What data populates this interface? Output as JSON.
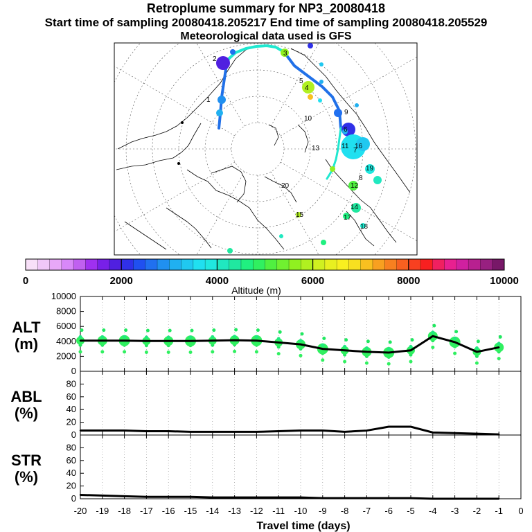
{
  "header": {
    "title": "Retroplume summary for NP3_20080418",
    "sampling": "Start time of sampling 20080418.205217     End time of sampling 20080418.205529",
    "met": "Meteorological data used is GFS"
  },
  "colorbar": {
    "ticks": [
      "0",
      "2000",
      "4000",
      "6000",
      "8000",
      "10000"
    ],
    "label": "Altitude (m)",
    "colors": [
      "#f8e0f8",
      "#f0c8f8",
      "#e8a8f8",
      "#d888f8",
      "#c060f0",
      "#a030f0",
      "#7820e8",
      "#5020e0",
      "#3030e8",
      "#2050f0",
      "#2070f0",
      "#2090f0",
      "#20b0f0",
      "#20c8f0",
      "#20e0f0",
      "#20e8e0",
      "#20e8c0",
      "#20e8a0",
      "#20f080",
      "#30f060",
      "#50f040",
      "#70f030",
      "#90f020",
      "#b0f020",
      "#d0f020",
      "#e8f020",
      "#f8f020",
      "#f8e020",
      "#f8c020",
      "#f8a020",
      "#f88020",
      "#f86020",
      "#f84020",
      "#f82020",
      "#f02060",
      "#e82090",
      "#d020a0",
      "#b82090",
      "#982080",
      "#781868"
    ]
  },
  "map": {
    "numbers": [
      "1",
      "2",
      "3",
      "4",
      "5",
      "6",
      "7",
      "8",
      "9",
      "10",
      "11",
      "12",
      "13",
      "14",
      "15",
      "16",
      "17",
      "18",
      "19",
      "20"
    ],
    "colors": {
      "track_blue": "#2070e8",
      "track_cyan": "#20e8d0",
      "coast": "#000000"
    }
  },
  "chart_data": [
    {
      "type": "line",
      "name": "ALT",
      "ylabel_line1": "ALT",
      "ylabel_line2": "(m)",
      "ylim": [
        0,
        10000
      ],
      "yticks": [
        0,
        2000,
        4000,
        6000,
        8000,
        10000
      ],
      "x": [
        -20,
        -19,
        -18,
        -17,
        -16,
        -15,
        -14,
        -13,
        -12,
        -11,
        -10,
        -9,
        -8,
        -7,
        -6,
        -5,
        -4,
        -3,
        -2,
        -1
      ],
      "values": [
        4100,
        4100,
        4100,
        4050,
        4050,
        4050,
        4100,
        4150,
        4100,
        3850,
        3600,
        3000,
        2800,
        2600,
        2500,
        2800,
        4700,
        3900,
        2600,
        3200
      ],
      "color": "#000000"
    },
    {
      "type": "line",
      "name": "ABL",
      "ylabel_line1": "ABL",
      "ylabel_line2": "(%)",
      "ylim": [
        0,
        100
      ],
      "yticks": [
        0,
        20,
        40,
        60,
        80
      ],
      "x": [
        -20,
        -19,
        -18,
        -17,
        -16,
        -15,
        -14,
        -13,
        -12,
        -11,
        -10,
        -9,
        -8,
        -7,
        -6,
        -5,
        -4,
        -3,
        -2,
        -1
      ],
      "values": [
        7,
        7,
        7,
        6,
        6,
        5,
        5,
        5,
        5,
        6,
        7,
        7,
        5,
        7,
        13,
        13,
        4,
        3,
        2,
        1
      ],
      "color": "#000000"
    },
    {
      "type": "line",
      "name": "STR",
      "ylabel_line1": "STR",
      "ylabel_line2": "(%)",
      "ylim": [
        0,
        100
      ],
      "yticks": [
        0,
        20,
        40,
        60,
        80
      ],
      "x": [
        -20,
        -19,
        -18,
        -17,
        -16,
        -15,
        -14,
        -13,
        -12,
        -11,
        -10,
        -9,
        -8,
        -7,
        -6,
        -5,
        -4,
        -3,
        -2,
        -1
      ],
      "values": [
        6,
        5,
        4,
        3,
        3,
        3,
        2,
        2,
        2,
        2,
        2,
        1,
        1,
        1,
        1,
        1,
        0,
        0,
        0,
        0
      ],
      "color": "#000000",
      "xlabel": "Travel time (days)",
      "xticks": [
        -20,
        -19,
        -18,
        -17,
        -16,
        -15,
        -14,
        -13,
        -12,
        -11,
        -10,
        -9,
        -8,
        -7,
        -6,
        -5,
        -4,
        -3,
        -2,
        -1,
        0
      ]
    }
  ]
}
